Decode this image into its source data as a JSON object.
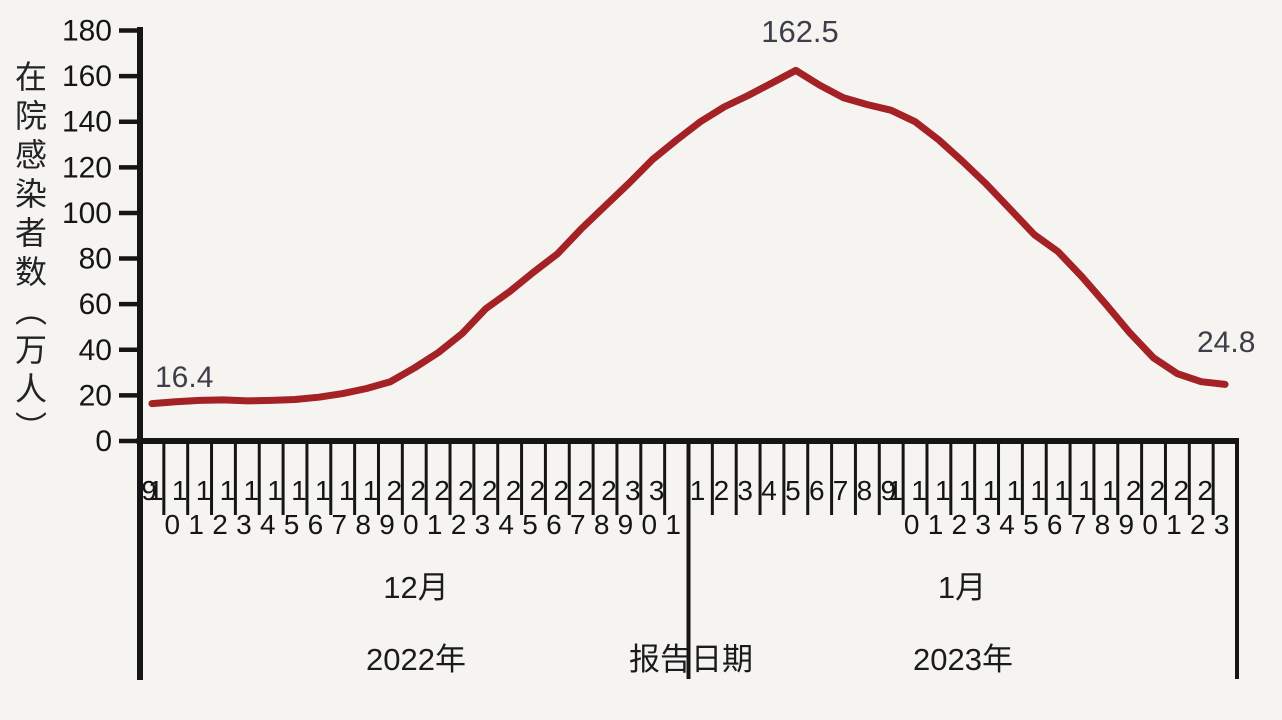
{
  "chart_data": {
    "type": "line",
    "title": "",
    "ylabel": "在院感染者数（万人）",
    "xlabel": "报告日期",
    "ylim": [
      0,
      180
    ],
    "y_ticks": [
      0,
      20,
      40,
      60,
      80,
      100,
      120,
      140,
      160,
      180
    ],
    "grid": false,
    "legend": false,
    "categories": [
      "9",
      "10",
      "11",
      "12",
      "13",
      "14",
      "15",
      "16",
      "17",
      "18",
      "19",
      "20",
      "21",
      "22",
      "23",
      "24",
      "25",
      "26",
      "27",
      "28",
      "29",
      "30",
      "31",
      "1",
      "2",
      "3",
      "4",
      "5",
      "6",
      "7",
      "8",
      "9",
      "10",
      "11",
      "12",
      "13",
      "14",
      "15",
      "16",
      "17",
      "18",
      "19",
      "20",
      "21",
      "22",
      "23"
    ],
    "month_split_index": 23,
    "series": [
      {
        "name": "在院感染者数",
        "color": "#a42125",
        "values": [
          16.4,
          17.2,
          17.8,
          18.0,
          17.6,
          17.8,
          18.2,
          19.2,
          20.8,
          23.0,
          26.0,
          32.0,
          38.7,
          47.0,
          58.0,
          65.5,
          74.0,
          82.0,
          93.0,
          103.0,
          113.0,
          123.5,
          132.0,
          140.0,
          146.5,
          151.5,
          157.0,
          162.5,
          156.0,
          150.5,
          147.5,
          145.0,
          140.0,
          132.0,
          122.5,
          112.5,
          101.5,
          90.5,
          83.0,
          72.0,
          60.0,
          47.5,
          36.5,
          29.5,
          26.0,
          24.8
        ]
      }
    ]
  },
  "annotations": [
    {
      "label": "16.4",
      "point": "start"
    },
    {
      "label": "162.5",
      "point": "peak"
    },
    {
      "label": "24.8",
      "point": "end"
    }
  ],
  "x_axis": {
    "left_month": "12月",
    "left_year": "2022年",
    "divider_label": "报告日期",
    "right_month": "1月",
    "right_year": "2023年"
  },
  "colors": {
    "line": "#a42125",
    "axis": "#151515",
    "text": "#151515",
    "annotation": "#3e3d49",
    "background": "#f5f4f1"
  }
}
